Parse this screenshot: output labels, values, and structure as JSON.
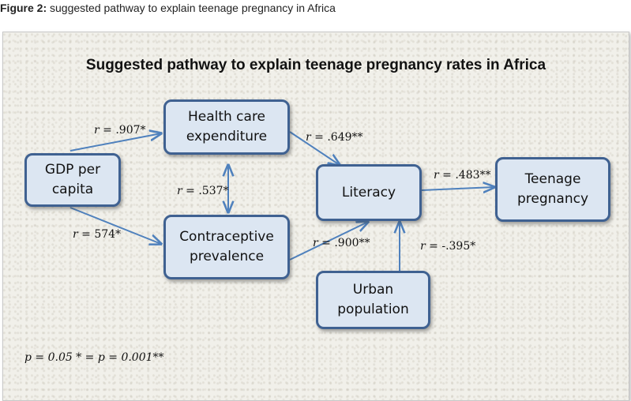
{
  "figure_caption": {
    "label": "Figure 2:",
    "text": " suggested pathway to explain teenage pregnancy in Africa"
  },
  "diagram": {
    "title": "Suggested pathway to explain teenage pregnancy rates in Africa",
    "nodes": {
      "gdp": "GDP per capita",
      "health": "Health care expenditure",
      "contraceptive": "Contraceptive prevalence",
      "literacy": "Literacy",
      "urban": "Urban population",
      "teenage": "Teenage pregnancy"
    },
    "edges": {
      "gdp_health": {
        "r_symbol": "r",
        "value": " = .907*"
      },
      "gdp_contraceptive": {
        "r_symbol": "r",
        "value": " = 574*"
      },
      "health_contraceptive": {
        "r_symbol": "r",
        "value": " = .537*"
      },
      "health_literacy": {
        "r_symbol": "r",
        "value": " = .649**"
      },
      "contraceptive_literacy": {
        "r_symbol": "r",
        "value": " = .900**"
      },
      "urban_literacy": {
        "r_symbol": "r",
        "value": " = -.395*"
      },
      "literacy_teenage": {
        "r_symbol": "r",
        "value": " = .483**"
      }
    },
    "significance_note": "p = 0.05 * = p = 0.001**",
    "colors": {
      "node_fill": "#dce6f2",
      "node_border": "#3f6191",
      "arrow": "#4f81bd"
    }
  }
}
